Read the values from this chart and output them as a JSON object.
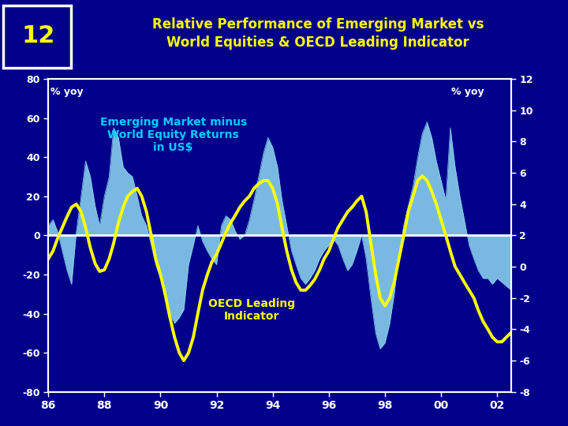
{
  "title": "Relative Performance of Emerging Market vs\nWorld Equities & OECD Leading Indicator",
  "slide_number": "12",
  "bg_color": "#00008B",
  "title_color": "#FFFF00",
  "slide_num_color": "#FFFF00",
  "ylabel_left": "% yoy",
  "ylabel_right": "% yoy",
  "ylim_left": [
    -80,
    80
  ],
  "ylim_right": [
    -8,
    12
  ],
  "xtick_labels": [
    "86",
    "88",
    "90",
    "92",
    "94",
    "96",
    "98",
    "00",
    "02"
  ],
  "yticks_left": [
    -80,
    -60,
    -40,
    -20,
    0,
    20,
    40,
    60,
    80
  ],
  "yticks_right": [
    -8,
    -6,
    -4,
    -2,
    0,
    2,
    4,
    6,
    8,
    10,
    12
  ],
  "em_color": "#87CEEB",
  "oecd_color": "#FFFF00",
  "zero_line_color": "#FFFFFF",
  "em_label_color": "#00CCFF",
  "oecd_label_color": "#FFFF00",
  "em_label": "Emerging Market minus\nWorld Equity Returns\nin US$",
  "oecd_label": "OECD Leading\nIndicator",
  "x": [
    1986.0,
    1986.17,
    1986.33,
    1986.5,
    1986.67,
    1986.83,
    1987.0,
    1987.17,
    1987.33,
    1987.5,
    1987.67,
    1987.83,
    1988.0,
    1988.17,
    1988.33,
    1988.5,
    1988.67,
    1988.83,
    1989.0,
    1989.17,
    1989.33,
    1989.5,
    1989.67,
    1989.83,
    1990.0,
    1990.17,
    1990.33,
    1990.5,
    1990.67,
    1990.83,
    1991.0,
    1991.17,
    1991.33,
    1991.5,
    1991.67,
    1991.83,
    1992.0,
    1992.17,
    1992.33,
    1992.5,
    1992.67,
    1992.83,
    1993.0,
    1993.17,
    1993.33,
    1993.5,
    1993.67,
    1993.83,
    1994.0,
    1994.17,
    1994.33,
    1994.5,
    1994.67,
    1994.83,
    1995.0,
    1995.17,
    1995.33,
    1995.5,
    1995.67,
    1995.83,
    1996.0,
    1996.17,
    1996.33,
    1996.5,
    1996.67,
    1996.83,
    1997.0,
    1997.17,
    1997.33,
    1997.5,
    1997.67,
    1997.83,
    1998.0,
    1998.17,
    1998.33,
    1998.5,
    1998.67,
    1998.83,
    1999.0,
    1999.17,
    1999.33,
    1999.5,
    1999.67,
    1999.83,
    2000.0,
    2000.17,
    2000.33,
    2000.5,
    2000.67,
    2000.83,
    2001.0,
    2001.17,
    2001.33,
    2001.5,
    2001.67,
    2001.83,
    2002.0,
    2002.17,
    2002.33,
    2002.5
  ],
  "em_values": [
    5,
    8,
    2,
    -8,
    -18,
    -25,
    2,
    20,
    38,
    30,
    15,
    5,
    20,
    30,
    55,
    50,
    35,
    32,
    30,
    20,
    10,
    5,
    -5,
    -15,
    -22,
    -30,
    -40,
    -45,
    -42,
    -38,
    -15,
    -5,
    5,
    -3,
    -8,
    -12,
    -15,
    5,
    10,
    8,
    2,
    -2,
    0,
    8,
    18,
    30,
    42,
    50,
    45,
    35,
    18,
    5,
    -8,
    -15,
    -22,
    -25,
    -22,
    -18,
    -12,
    -8,
    -5,
    -2,
    -5,
    -12,
    -18,
    -15,
    -8,
    0,
    -12,
    -32,
    -50,
    -58,
    -55,
    -45,
    -30,
    -10,
    5,
    15,
    25,
    40,
    52,
    58,
    50,
    38,
    28,
    18,
    55,
    35,
    20,
    8,
    -5,
    -12,
    -18,
    -22,
    -22,
    -25,
    -22,
    -24,
    -26,
    -28
  ],
  "oecd_values": [
    0.5,
    1.0,
    1.8,
    2.5,
    3.2,
    3.8,
    4.0,
    3.5,
    2.5,
    1.2,
    0.2,
    -0.3,
    -0.2,
    0.5,
    1.5,
    2.8,
    3.8,
    4.5,
    4.8,
    5.0,
    4.5,
    3.5,
    2.0,
    0.5,
    -0.5,
    -1.8,
    -3.2,
    -4.5,
    -5.5,
    -6.0,
    -5.5,
    -4.5,
    -3.0,
    -1.5,
    -0.5,
    0.3,
    0.8,
    1.5,
    2.2,
    2.8,
    3.3,
    3.8,
    4.2,
    4.5,
    5.0,
    5.3,
    5.5,
    5.5,
    5.0,
    4.0,
    2.5,
    1.0,
    -0.2,
    -1.0,
    -1.5,
    -1.5,
    -1.2,
    -0.8,
    -0.2,
    0.5,
    1.0,
    1.8,
    2.5,
    3.0,
    3.5,
    3.8,
    4.2,
    4.5,
    3.5,
    1.5,
    -0.5,
    -2.0,
    -2.5,
    -2.0,
    -1.0,
    0.5,
    2.0,
    3.5,
    4.5,
    5.5,
    5.8,
    5.5,
    4.8,
    4.0,
    3.0,
    2.0,
    1.0,
    0.0,
    -0.5,
    -1.0,
    -1.5,
    -2.0,
    -2.8,
    -3.5,
    -4.0,
    -4.5,
    -4.8,
    -4.8,
    -4.5,
    -4.2
  ]
}
